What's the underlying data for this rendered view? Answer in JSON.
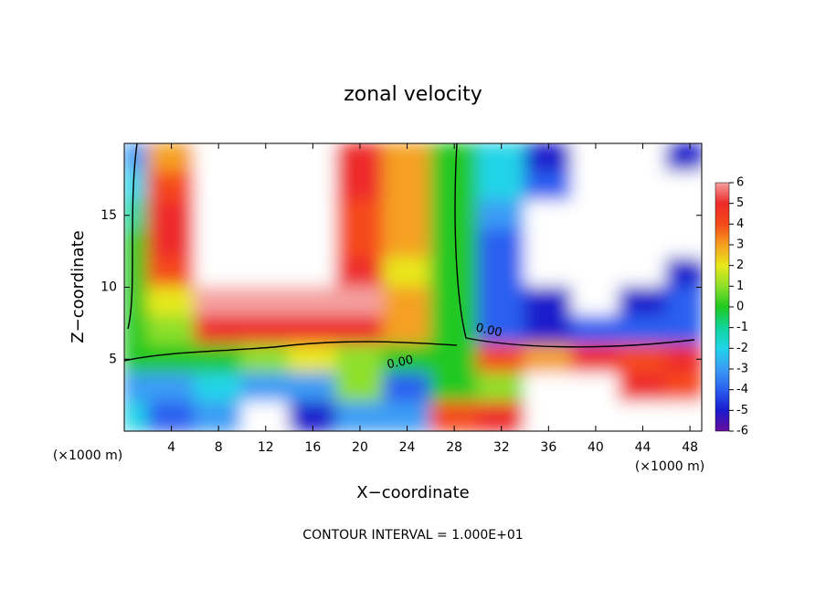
{
  "chart_data": {
    "type": "contour",
    "title": "zonal velocity",
    "x_label": "X−coordinate",
    "y_label": "Z−coordinate",
    "x_unit": "(×1000 m)",
    "y_unit": "(×1000 m)",
    "footer": "CONTOUR INTERVAL = 1.000E+01",
    "annotations": [
      "0.00",
      "0.00"
    ],
    "x": [
      0,
      4,
      8,
      12,
      16,
      20,
      24,
      28,
      32,
      36,
      40,
      44,
      48
    ],
    "z": [
      19,
      17,
      15,
      13,
      11,
      9,
      7,
      5,
      3,
      1
    ],
    "values": [
      [
        -3,
        3,
        null,
        null,
        null,
        5,
        3,
        0,
        -2,
        -5,
        null,
        null,
        -5
      ],
      [
        -2,
        4,
        null,
        null,
        null,
        5,
        3,
        0,
        -2,
        -4,
        null,
        null,
        null
      ],
      [
        -1,
        5,
        null,
        null,
        null,
        4,
        3,
        0,
        -3,
        null,
        null,
        null,
        null
      ],
      [
        0,
        5,
        null,
        null,
        null,
        4,
        3,
        0,
        -4,
        null,
        null,
        null,
        null
      ],
      [
        0,
        4,
        null,
        null,
        null,
        5,
        2,
        0,
        -4,
        null,
        null,
        null,
        -5
      ],
      [
        0,
        2,
        6,
        6,
        6,
        6,
        3,
        0,
        -4,
        -5,
        null,
        -5,
        -4
      ],
      [
        0,
        1,
        5,
        5,
        5,
        5,
        3,
        0,
        -4,
        -5,
        -4,
        -4,
        -4
      ],
      [
        0,
        0,
        0,
        1,
        2,
        1,
        0,
        0,
        4,
        3,
        5,
        4,
        5
      ],
      [
        -3,
        -3,
        -2,
        -3,
        -3,
        1,
        -4,
        0,
        1,
        null,
        null,
        5,
        4
      ],
      [
        -2,
        -4,
        -3,
        null,
        -5,
        -3,
        -3,
        4,
        5,
        null,
        null,
        null,
        null
      ]
    ],
    "xlim": [
      0,
      49
    ],
    "ylim": [
      0,
      20
    ],
    "xticks": [
      4,
      8,
      12,
      16,
      20,
      24,
      28,
      32,
      36,
      40,
      44,
      48
    ],
    "yticks": [
      5,
      10,
      15
    ],
    "clim": [
      -6,
      6
    ],
    "cticks": [
      -6,
      -5,
      -4,
      -3,
      -2,
      -1,
      0,
      1,
      2,
      3,
      4,
      5,
      6
    ],
    "colors": [
      "#6a0d9e",
      "#1a1acc",
      "#2a5ff0",
      "#3a9cf5",
      "#20d4e8",
      "#10d49a",
      "#20c820",
      "#8ee02a",
      "#e8e81a",
      "#f5a020",
      "#f54a1a",
      "#ee2a2a",
      "#f4a0a0"
    ]
  }
}
